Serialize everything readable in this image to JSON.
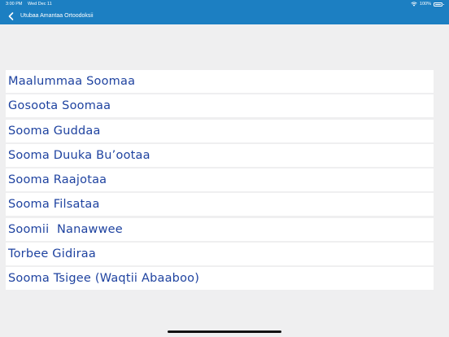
{
  "status_bar": {
    "time": "3:00 PM",
    "date": "Wed Dec 11",
    "battery_text": "100%",
    "icons": [
      "wifi-icon",
      "battery-icon"
    ]
  },
  "nav": {
    "back_icon": "chevron-left-icon",
    "title": "Utubaa Amantaa Ortoodoksii"
  },
  "menu": {
    "items": [
      {
        "label": "Maalummaa Soomaa"
      },
      {
        "label": "Gosoota Soomaa"
      },
      {
        "label": "Sooma Guddaa"
      },
      {
        "label": "Sooma Duuka Bu’ootaa"
      },
      {
        "label": "Sooma Raajotaa"
      },
      {
        "label": "Sooma Filsataa"
      },
      {
        "label": "Soomii  Nanawwee"
      },
      {
        "label": "Torbee Gidiraa"
      },
      {
        "label": "Sooma Tsigee (Waqtii Abaaboo)"
      }
    ]
  },
  "colors": {
    "bar": "#1c7fc2",
    "background": "#efeff0",
    "item_text": "#1f43a0"
  }
}
